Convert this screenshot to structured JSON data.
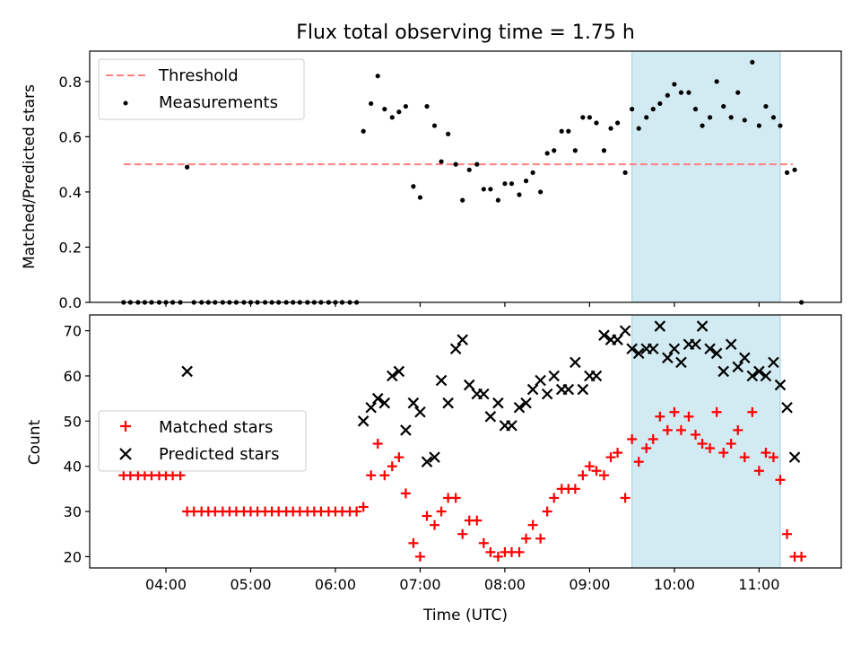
{
  "chart_data": [
    {
      "type": "scatter",
      "title": "Flux total observing time = 1.75 h",
      "xlabel": "",
      "ylabel": "Matched/Predicted stars",
      "ylim": [
        0,
        0.91
      ],
      "yticks": [
        "0.0",
        "0.2",
        "0.4",
        "0.6",
        "0.8"
      ],
      "ytick_values": [
        0,
        0.2,
        0.4,
        0.6,
        0.8
      ],
      "xlim_hours": [
        3.1,
        11.97
      ],
      "highlight_span_hours": [
        9.5,
        11.25
      ],
      "highlight_color": "#add8e6",
      "legend_position": "upper left",
      "threshold": {
        "name": "Threshold",
        "value": 0.5,
        "x_range_hours": [
          3.5,
          11.4
        ],
        "color": "#ff8080",
        "style": "dashed"
      },
      "series": [
        {
          "name": "Measurements",
          "color": "#000000",
          "marker": "dot",
          "x": [
            3.5,
            3.58,
            3.67,
            3.75,
            3.83,
            3.92,
            4.0,
            4.08,
            4.17,
            4.25,
            4.33,
            4.42,
            4.5,
            4.58,
            4.67,
            4.75,
            4.83,
            4.92,
            5.0,
            5.08,
            5.17,
            5.25,
            5.33,
            5.42,
            5.5,
            5.58,
            5.67,
            5.75,
            5.83,
            5.92,
            6.0,
            6.08,
            6.17,
            6.25,
            6.33,
            6.42,
            6.5,
            6.58,
            6.67,
            6.75,
            6.83,
            6.92,
            7.0,
            7.08,
            7.17,
            7.25,
            7.33,
            7.42,
            7.5,
            7.58,
            7.67,
            7.75,
            7.83,
            7.92,
            8.0,
            8.08,
            8.17,
            8.25,
            8.33,
            8.42,
            8.5,
            8.58,
            8.67,
            8.75,
            8.83,
            8.92,
            9.0,
            9.08,
            9.17,
            9.25,
            9.33,
            9.42,
            9.5,
            9.58,
            9.67,
            9.75,
            9.83,
            9.92,
            10.0,
            10.08,
            10.17,
            10.25,
            10.33,
            10.42,
            10.5,
            10.58,
            10.67,
            10.75,
            10.83,
            10.92,
            11.0,
            11.08,
            11.17,
            11.25,
            11.33,
            11.42,
            11.5
          ],
          "y": [
            0,
            0,
            0,
            0,
            0,
            0,
            0,
            0,
            0,
            0.49,
            0,
            0,
            0,
            0,
            0,
            0,
            0,
            0,
            0,
            0,
            0,
            0,
            0,
            0,
            0,
            0,
            0,
            0,
            0,
            0,
            0,
            0,
            0,
            0,
            0.62,
            0.72,
            0.82,
            0.7,
            0.67,
            0.69,
            0.71,
            0.42,
            0.38,
            0.71,
            0.64,
            0.51,
            0.61,
            0.5,
            0.37,
            0.48,
            0.5,
            0.41,
            0.41,
            0.37,
            0.43,
            0.43,
            0.39,
            0.44,
            0.47,
            0.4,
            0.54,
            0.55,
            0.62,
            0.62,
            0.55,
            0.67,
            0.67,
            0.65,
            0.55,
            0.63,
            0.65,
            0.47,
            0.7,
            0.63,
            0.67,
            0.7,
            0.72,
            0.75,
            0.79,
            0.76,
            0.76,
            0.7,
            0.64,
            0.67,
            0.8,
            0.71,
            0.67,
            0.76,
            0.66,
            0.87,
            0.64,
            0.71,
            0.67,
            0.64,
            0.47,
            0.48,
            0
          ]
        }
      ]
    },
    {
      "type": "scatter",
      "title": "",
      "xlabel": "Time (UTC)",
      "ylabel": "Count",
      "ylim": [
        17.5,
        73.5
      ],
      "yticks": [
        "20",
        "30",
        "40",
        "50",
        "60",
        "70"
      ],
      "ytick_values": [
        20,
        30,
        40,
        50,
        60,
        70
      ],
      "xlim_hours": [
        3.1,
        11.97
      ],
      "xticks": [
        "04:00",
        "05:00",
        "06:00",
        "07:00",
        "08:00",
        "09:00",
        "10:00",
        "11:00"
      ],
      "xtick_hours": [
        4,
        5,
        6,
        7,
        8,
        9,
        10,
        11
      ],
      "highlight_span_hours": [
        9.5,
        11.25
      ],
      "highlight_color": "#add8e6",
      "legend_position": "center left",
      "series": [
        {
          "name": "Matched stars",
          "color": "#ff0000",
          "marker": "plus",
          "x": [
            3.5,
            3.58,
            3.67,
            3.75,
            3.83,
            3.92,
            4.0,
            4.08,
            4.17,
            4.25,
            4.33,
            4.42,
            4.5,
            4.58,
            4.67,
            4.75,
            4.83,
            4.92,
            5.0,
            5.08,
            5.17,
            5.25,
            5.33,
            5.42,
            5.5,
            5.58,
            5.67,
            5.75,
            5.83,
            5.92,
            6.0,
            6.08,
            6.17,
            6.25,
            6.33,
            6.42,
            6.5,
            6.58,
            6.67,
            6.75,
            6.83,
            6.92,
            7.0,
            7.08,
            7.17,
            7.25,
            7.33,
            7.42,
            7.5,
            7.58,
            7.67,
            7.75,
            7.83,
            7.92,
            8.0,
            8.08,
            8.17,
            8.25,
            8.33,
            8.42,
            8.5,
            8.58,
            8.67,
            8.75,
            8.83,
            8.92,
            9.0,
            9.08,
            9.17,
            9.25,
            9.33,
            9.42,
            9.5,
            9.58,
            9.67,
            9.75,
            9.83,
            9.92,
            10.0,
            10.08,
            10.17,
            10.25,
            10.33,
            10.42,
            10.5,
            10.58,
            10.67,
            10.75,
            10.83,
            10.92,
            11.0,
            11.08,
            11.17,
            11.25,
            11.33,
            11.42,
            11.5
          ],
          "y": [
            38,
            38,
            38,
            38,
            38,
            38,
            38,
            38,
            38,
            30,
            30,
            30,
            30,
            30,
            30,
            30,
            30,
            30,
            30,
            30,
            30,
            30,
            30,
            30,
            30,
            30,
            30,
            30,
            30,
            30,
            30,
            30,
            30,
            30,
            31,
            38,
            45,
            38,
            40,
            42,
            34,
            23,
            20,
            29,
            27,
            30,
            33,
            33,
            25,
            28,
            28,
            23,
            21,
            20,
            21,
            21,
            21,
            24,
            27,
            24,
            30,
            33,
            35,
            35,
            35,
            38,
            40,
            39,
            38,
            42,
            43,
            33,
            46,
            41,
            44,
            46,
            51,
            48,
            52,
            48,
            51,
            47,
            45,
            44,
            52,
            43,
            45,
            48,
            42,
            52,
            39,
            43,
            42,
            37,
            25,
            20,
            20
          ]
        },
        {
          "name": "Predicted stars",
          "color": "#000000",
          "marker": "x",
          "x": [
            4.25,
            6.33,
            6.42,
            6.5,
            6.58,
            6.67,
            6.75,
            6.83,
            6.92,
            7.0,
            7.08,
            7.17,
            7.25,
            7.33,
            7.42,
            7.5,
            7.58,
            7.67,
            7.75,
            7.83,
            7.92,
            8.0,
            8.08,
            8.17,
            8.25,
            8.33,
            8.42,
            8.5,
            8.58,
            8.67,
            8.75,
            8.83,
            8.92,
            9.0,
            9.08,
            9.17,
            9.25,
            9.33,
            9.42,
            9.5,
            9.58,
            9.67,
            9.75,
            9.83,
            9.92,
            10.0,
            10.08,
            10.17,
            10.25,
            10.33,
            10.42,
            10.5,
            10.58,
            10.67,
            10.75,
            10.83,
            10.92,
            11.0,
            11.08,
            11.17,
            11.25,
            11.33,
            11.42
          ],
          "y": [
            61,
            50,
            53,
            55,
            54,
            60,
            61,
            48,
            54,
            52,
            41,
            42,
            59,
            54,
            66,
            68,
            58,
            56,
            56,
            51,
            54,
            49,
            49,
            53,
            54,
            57,
            59,
            56,
            60,
            57,
            57,
            63,
            57,
            60,
            60,
            69,
            68,
            68,
            70,
            66,
            65,
            66,
            66,
            71,
            64,
            66,
            63,
            67,
            67,
            71,
            66,
            65,
            61,
            67,
            62,
            64,
            60,
            61,
            60,
            63,
            58,
            53,
            42
          ]
        }
      ]
    }
  ]
}
